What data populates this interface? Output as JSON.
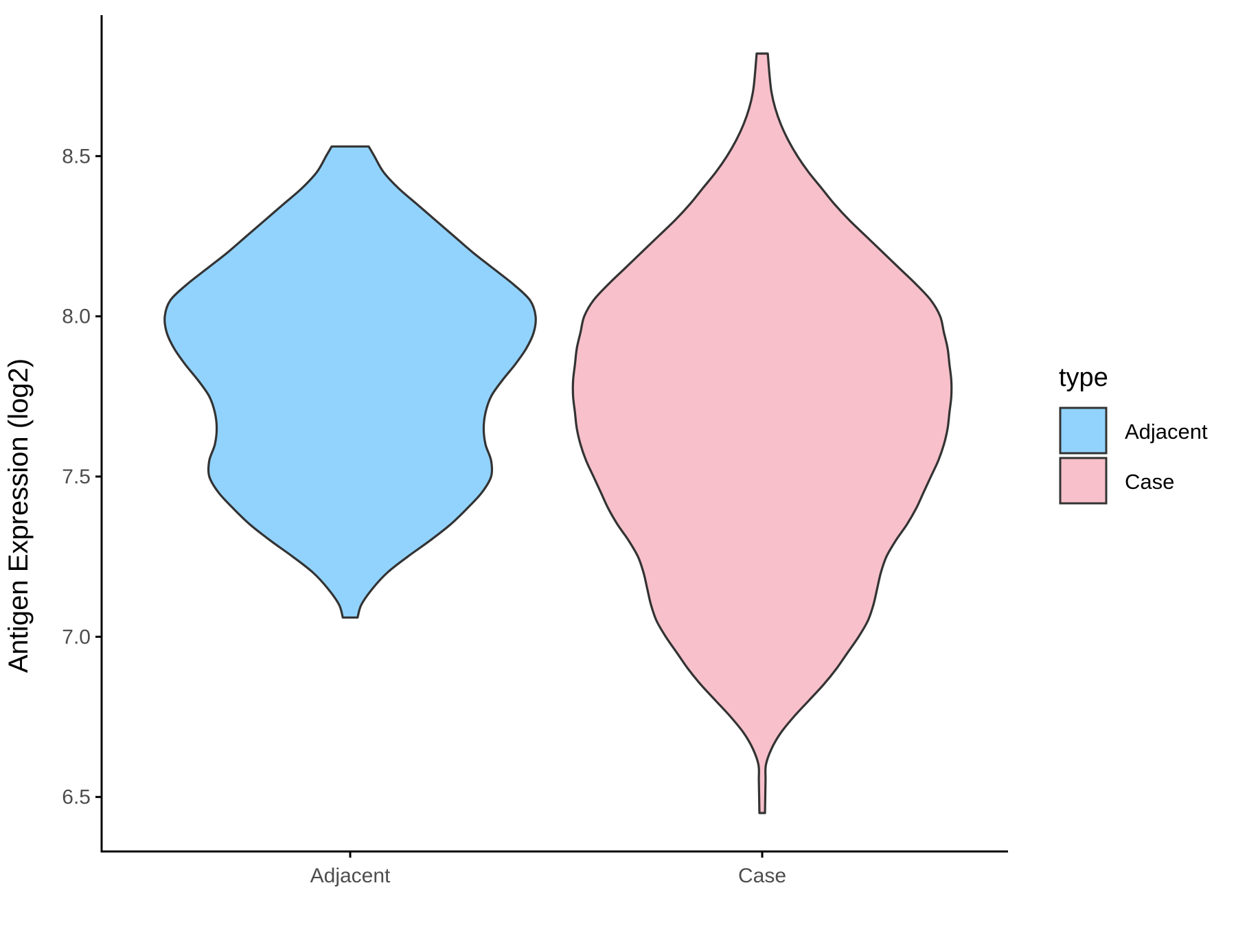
{
  "chart_data": {
    "type": "violin",
    "xlabel": "",
    "ylabel": "Antigen Expression (log2)",
    "categories": [
      "Adjacent",
      "Case"
    ],
    "ylim": [
      6.33,
      8.94
    ],
    "yticks": [
      "6.5",
      "7.0",
      "7.5",
      "8.0",
      "8.5"
    ],
    "grid": false,
    "legend": {
      "title": "type",
      "position": "right",
      "items": [
        {
          "label": "Adjacent",
          "color": "#92D3FD"
        },
        {
          "label": "Case",
          "color": "#F7C0CA"
        }
      ]
    },
    "series": [
      {
        "name": "Adjacent",
        "color": "#92D3FD",
        "min": 7.06,
        "max": 8.53,
        "density": [
          [
            7.06,
            0.04
          ],
          [
            7.1,
            0.06
          ],
          [
            7.15,
            0.12
          ],
          [
            7.2,
            0.2
          ],
          [
            7.25,
            0.31
          ],
          [
            7.3,
            0.43
          ],
          [
            7.35,
            0.54
          ],
          [
            7.4,
            0.63
          ],
          [
            7.45,
            0.71
          ],
          [
            7.5,
            0.76
          ],
          [
            7.55,
            0.76
          ],
          [
            7.6,
            0.73
          ],
          [
            7.65,
            0.72
          ],
          [
            7.7,
            0.73
          ],
          [
            7.75,
            0.76
          ],
          [
            7.8,
            0.82
          ],
          [
            7.85,
            0.89
          ],
          [
            7.9,
            0.95
          ],
          [
            7.95,
            0.99
          ],
          [
            8.0,
            1.0
          ],
          [
            8.05,
            0.97
          ],
          [
            8.1,
            0.88
          ],
          [
            8.15,
            0.77
          ],
          [
            8.2,
            0.66
          ],
          [
            8.25,
            0.56
          ],
          [
            8.3,
            0.46
          ],
          [
            8.35,
            0.36
          ],
          [
            8.4,
            0.26
          ],
          [
            8.45,
            0.18
          ],
          [
            8.5,
            0.13
          ],
          [
            8.53,
            0.1
          ]
        ]
      },
      {
        "name": "Case",
        "color": "#F7C0CA",
        "min": 6.45,
        "max": 8.82,
        "density": [
          [
            6.45,
            0.015
          ],
          [
            6.55,
            0.018
          ],
          [
            6.6,
            0.02
          ],
          [
            6.65,
            0.05
          ],
          [
            6.7,
            0.1
          ],
          [
            6.75,
            0.17
          ],
          [
            6.8,
            0.25
          ],
          [
            6.85,
            0.33
          ],
          [
            6.9,
            0.4
          ],
          [
            6.95,
            0.46
          ],
          [
            7.0,
            0.52
          ],
          [
            7.05,
            0.57
          ],
          [
            7.1,
            0.6
          ],
          [
            7.15,
            0.62
          ],
          [
            7.2,
            0.64
          ],
          [
            7.25,
            0.67
          ],
          [
            7.3,
            0.72
          ],
          [
            7.35,
            0.78
          ],
          [
            7.4,
            0.83
          ],
          [
            7.45,
            0.87
          ],
          [
            7.5,
            0.91
          ],
          [
            7.55,
            0.95
          ],
          [
            7.6,
            0.98
          ],
          [
            7.65,
            1.0
          ],
          [
            7.7,
            1.01
          ],
          [
            7.75,
            1.02
          ],
          [
            7.8,
            1.02
          ],
          [
            7.85,
            1.01
          ],
          [
            7.9,
            1.0
          ],
          [
            7.95,
            0.98
          ],
          [
            8.0,
            0.96
          ],
          [
            8.05,
            0.91
          ],
          [
            8.1,
            0.83
          ],
          [
            8.15,
            0.74
          ],
          [
            8.2,
            0.65
          ],
          [
            8.25,
            0.56
          ],
          [
            8.3,
            0.47
          ],
          [
            8.35,
            0.39
          ],
          [
            8.4,
            0.32
          ],
          [
            8.45,
            0.25
          ],
          [
            8.5,
            0.19
          ],
          [
            8.55,
            0.14
          ],
          [
            8.6,
            0.1
          ],
          [
            8.65,
            0.07
          ],
          [
            8.7,
            0.05
          ],
          [
            8.75,
            0.04
          ],
          [
            8.82,
            0.03
          ]
        ]
      }
    ]
  }
}
